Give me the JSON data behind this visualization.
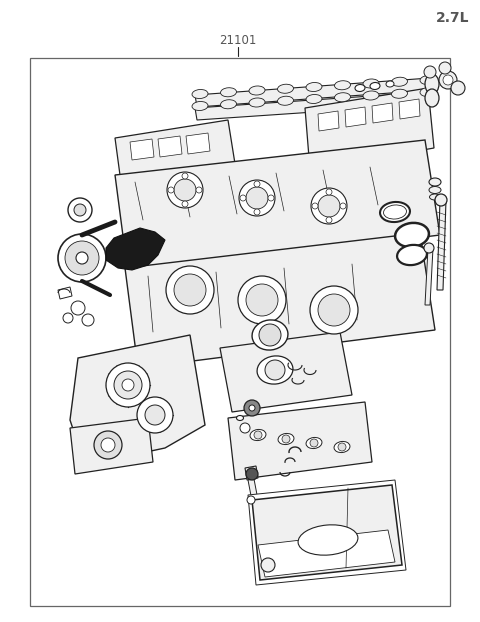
{
  "title_top_right": "2.7L",
  "part_number": "21101",
  "background_color": "#ffffff",
  "border_color": "#666666",
  "line_color": "#222222",
  "text_color": "#555555",
  "fig_width": 4.8,
  "fig_height": 6.22,
  "dpi": 100
}
